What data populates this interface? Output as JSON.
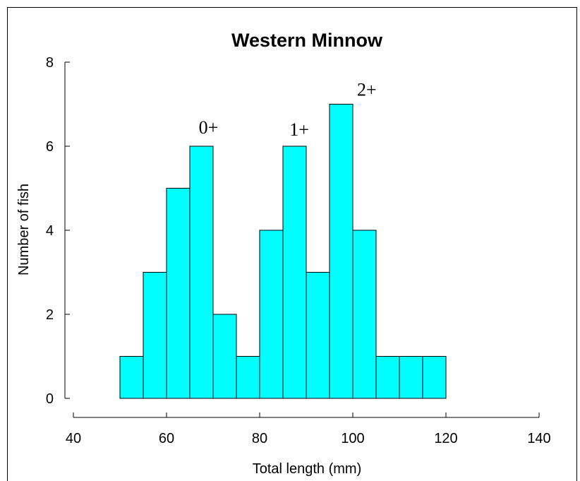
{
  "chart_data": {
    "type": "bar",
    "title": "Western Minnow",
    "xlabel": "Total length (mm)",
    "ylabel": "Number of fish",
    "xlim": [
      40,
      140
    ],
    "ylim": [
      0,
      8
    ],
    "x_ticks": [
      "40",
      "60",
      "80",
      "100",
      "120",
      "140"
    ],
    "y_ticks": [
      "0",
      "2",
      "4",
      "6",
      "8"
    ],
    "bin_width": 5,
    "bins": [
      {
        "x": 50,
        "count": 1
      },
      {
        "x": 55,
        "count": 3
      },
      {
        "x": 60,
        "count": 5
      },
      {
        "x": 65,
        "count": 6
      },
      {
        "x": 70,
        "count": 2
      },
      {
        "x": 75,
        "count": 1
      },
      {
        "x": 80,
        "count": 4
      },
      {
        "x": 85,
        "count": 6
      },
      {
        "x": 90,
        "count": 3
      },
      {
        "x": 95,
        "count": 7
      },
      {
        "x": 100,
        "count": 4
      },
      {
        "x": 105,
        "count": 1
      },
      {
        "x": 110,
        "count": 1
      },
      {
        "x": 115,
        "count": 1
      }
    ],
    "annotations": [
      {
        "text": "0+",
        "x": 69,
        "y": 6.3
      },
      {
        "text": "1+",
        "x": 88.5,
        "y": 6.25
      },
      {
        "text": "2+",
        "x": 103,
        "y": 7.2
      }
    ],
    "colors": {
      "bar_fill": "#00ffff",
      "bar_stroke": "#000000"
    },
    "grid": false
  }
}
